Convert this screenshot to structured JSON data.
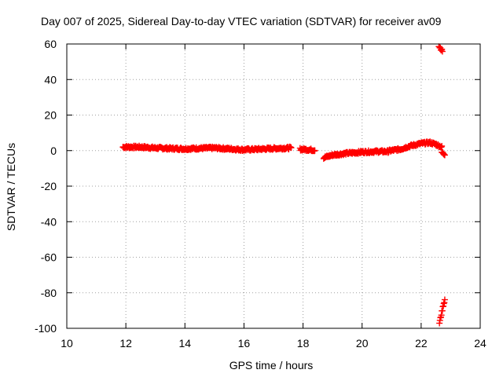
{
  "chart_data": {
    "type": "scatter",
    "title": "Day 007 of 2025, Sidereal Day-to-day VTEC variation (SDTVAR) for receiver av09",
    "xlabel": "GPS time / hours",
    "ylabel": "SDTVAR / TECUs",
    "xlim": [
      10,
      24
    ],
    "ylim": [
      -100,
      60
    ],
    "xticks": [
      10,
      12,
      14,
      16,
      18,
      20,
      22,
      24
    ],
    "yticks": [
      -100,
      -80,
      -60,
      -40,
      -20,
      0,
      20,
      40,
      60
    ],
    "xtick_labels": [
      "10",
      "12",
      "14",
      "16",
      "18",
      "20",
      "22",
      "24"
    ],
    "ytick_labels": [
      "-100",
      "-80",
      "-60",
      "-40",
      "-20",
      "0",
      "20",
      "40",
      "60"
    ],
    "grid": true,
    "marker": "+",
    "series": [
      {
        "name": "SDTVAR",
        "color": "#ff0000",
        "segments": [
          {
            "x_start": 11.9,
            "x_end": 17.6,
            "y_points": [
              [
                11.9,
                2.0
              ],
              [
                12.5,
                2.0
              ],
              [
                13.0,
                1.5
              ],
              [
                13.5,
                1.2
              ],
              [
                14.0,
                1.0
              ],
              [
                14.5,
                1.3
              ],
              [
                15.0,
                1.5
              ],
              [
                15.5,
                1.0
              ],
              [
                16.0,
                0.5
              ],
              [
                16.5,
                0.8
              ],
              [
                17.0,
                1.2
              ],
              [
                17.6,
                1.5
              ]
            ]
          },
          {
            "x_start": 17.9,
            "x_end": 18.4,
            "y_points": [
              [
                17.9,
                0.8
              ],
              [
                18.4,
                0.3
              ]
            ]
          },
          {
            "x_start": 18.7,
            "x_end": 20.9,
            "y_points": [
              [
                18.7,
                -4.0
              ],
              [
                19.0,
                -2.5
              ],
              [
                19.5,
                -1.5
              ],
              [
                20.0,
                -0.8
              ],
              [
                20.5,
                -0.5
              ],
              [
                20.9,
                -0.5
              ]
            ]
          },
          {
            "x_start": 20.9,
            "x_end": 22.7,
            "y_points": [
              [
                20.9,
                -0.2
              ],
              [
                21.3,
                0.8
              ],
              [
                21.6,
                2.5
              ],
              [
                22.0,
                4.0
              ],
              [
                22.3,
                4.5
              ],
              [
                22.5,
                3.5
              ],
              [
                22.7,
                2.0
              ]
            ]
          },
          {
            "x_start": 22.7,
            "x_end": 22.8,
            "y_points": [
              [
                22.7,
                -1.0
              ],
              [
                22.8,
                -2.0
              ]
            ]
          },
          {
            "x_start": 22.6,
            "x_end": 22.72,
            "y_points": [
              [
                22.6,
                59.0
              ],
              [
                22.66,
                57.5
              ],
              [
                22.72,
                56.0
              ]
            ]
          },
          {
            "x_start": 22.62,
            "x_end": 22.8,
            "y_points": [
              [
                22.62,
                -97.0
              ],
              [
                22.66,
                -94.0
              ],
              [
                22.7,
                -91.0
              ],
              [
                22.75,
                -87.0
              ],
              [
                22.8,
                -84.0
              ]
            ]
          }
        ]
      }
    ]
  }
}
